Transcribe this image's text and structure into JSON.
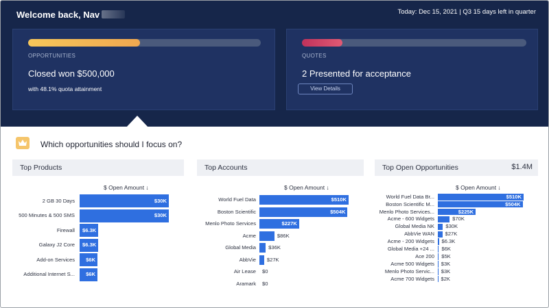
{
  "header": {
    "welcome": "Welcome back, Nav",
    "today": "Today: Dec 15, 2021 | Q3 15 days left in quarter"
  },
  "cards": {
    "opportunities": {
      "label": "OPPORTUNITIES",
      "title": "Closed won $500,000",
      "sub": "with 48.1% quota attainment",
      "progress": 0.48
    },
    "quotes": {
      "label": "QUOTES",
      "title": "2 Presented for acceptance",
      "button": "View Details",
      "progress": 0.18
    }
  },
  "question": "Which opportunities should I focus on?",
  "colors": {
    "bar": "#2f6fe0",
    "header_bg": "#16264a"
  },
  "sections": {
    "products": {
      "title": "Top Products",
      "col": "$ Open Amount ↓",
      "max": 30,
      "items": [
        {
          "label": "2 GB 30 Days",
          "value": 30,
          "text": "$30K"
        },
        {
          "label": "500 Minutes & 500 SMS",
          "value": 30,
          "text": "$30K"
        },
        {
          "label": "Firewall",
          "value": 6.3,
          "text": "$6.3K"
        },
        {
          "label": "Galaxy J2 Core",
          "value": 6.3,
          "text": "$6.3K"
        },
        {
          "label": "Add-on Services",
          "value": 6,
          "text": "$6K"
        },
        {
          "label": "Additional Internet S...",
          "value": 6,
          "text": "$6K"
        }
      ]
    },
    "accounts": {
      "title": "Top Accounts",
      "col": "$ Open Amount ↓",
      "max": 510,
      "items": [
        {
          "label": "World Fuel Data",
          "value": 510,
          "text": "$510K"
        },
        {
          "label": "Boston Scientific",
          "value": 504,
          "text": "$504K"
        },
        {
          "label": "Menlo Photo Services",
          "value": 227,
          "text": "$227K"
        },
        {
          "label": "Acme",
          "value": 86,
          "text": "$86K"
        },
        {
          "label": "Global Media",
          "value": 36,
          "text": "$36K"
        },
        {
          "label": "AbbVie",
          "value": 27,
          "text": "$27K"
        },
        {
          "label": "Air Lease",
          "value": 0,
          "text": "$0"
        },
        {
          "label": "Aramark",
          "value": 0,
          "text": "$0"
        }
      ]
    },
    "opportunities": {
      "title": "Top Open Opportunities",
      "total": "$1.4M",
      "col": "$ Open Amount ↓",
      "max": 510,
      "items": [
        {
          "label": "World Fuel Data Br...",
          "value": 510,
          "text": "$510K"
        },
        {
          "label": "Boston Scientific M...",
          "value": 504,
          "text": "$504K"
        },
        {
          "label": "Menlo Photo Services...",
          "value": 225,
          "text": "$225K"
        },
        {
          "label": "Acme - 600 Widgets",
          "value": 70,
          "text": "$70K"
        },
        {
          "label": "Global Media NK",
          "value": 30,
          "text": "$30K"
        },
        {
          "label": "AbbVie WAN",
          "value": 27,
          "text": "$27K"
        },
        {
          "label": "Acme - 200 Widgets",
          "value": 6.3,
          "text": "$6.3K"
        },
        {
          "label": "Global Media +24 ...",
          "value": 6,
          "text": "$6K"
        },
        {
          "label": "Ace 200",
          "value": 5,
          "text": "$5K"
        },
        {
          "label": "Acme 500 Widgets",
          "value": 3,
          "text": "$3K"
        },
        {
          "label": "Menlo Photo Servic...",
          "value": 3,
          "text": "$3K"
        },
        {
          "label": "Acme 700 Widgets",
          "value": 2,
          "text": "$2K"
        }
      ]
    }
  }
}
